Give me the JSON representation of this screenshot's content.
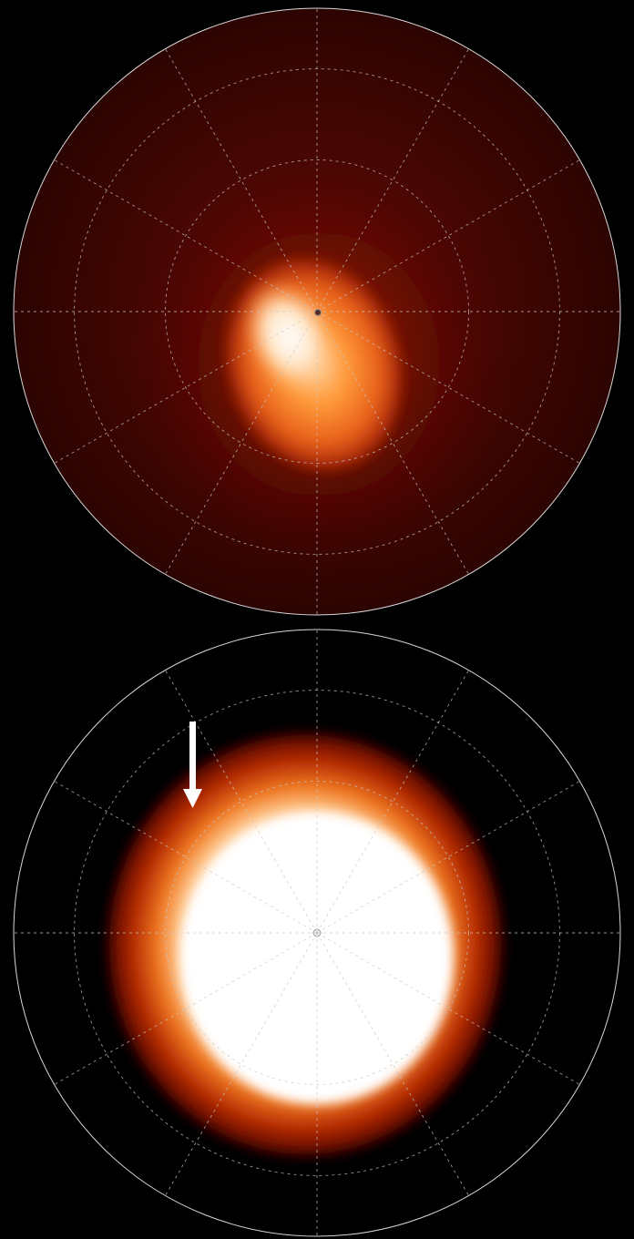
{
  "figure": {
    "background_color": "#000000",
    "grid_color": "#c8c8c8",
    "outline_color": "#d8d8d8",
    "panels": [
      {
        "id": "top",
        "glow_colors": [
          "#3a0502",
          "#5a0a04",
          "#8a1a06",
          "#c8400c",
          "#ee7a22",
          "#ffb060",
          "#ffe2bf",
          "#ffffff"
        ]
      },
      {
        "id": "bottom",
        "glow_colors": [
          "#000000",
          "#3a0300",
          "#8a1400",
          "#c43200",
          "#ea6e14",
          "#ffaa55",
          "#ffe0c0",
          "#ffffff"
        ]
      }
    ],
    "annotation": {
      "type": "arrow",
      "icon": "down-arrow-icon",
      "color": "#ffffff"
    }
  }
}
